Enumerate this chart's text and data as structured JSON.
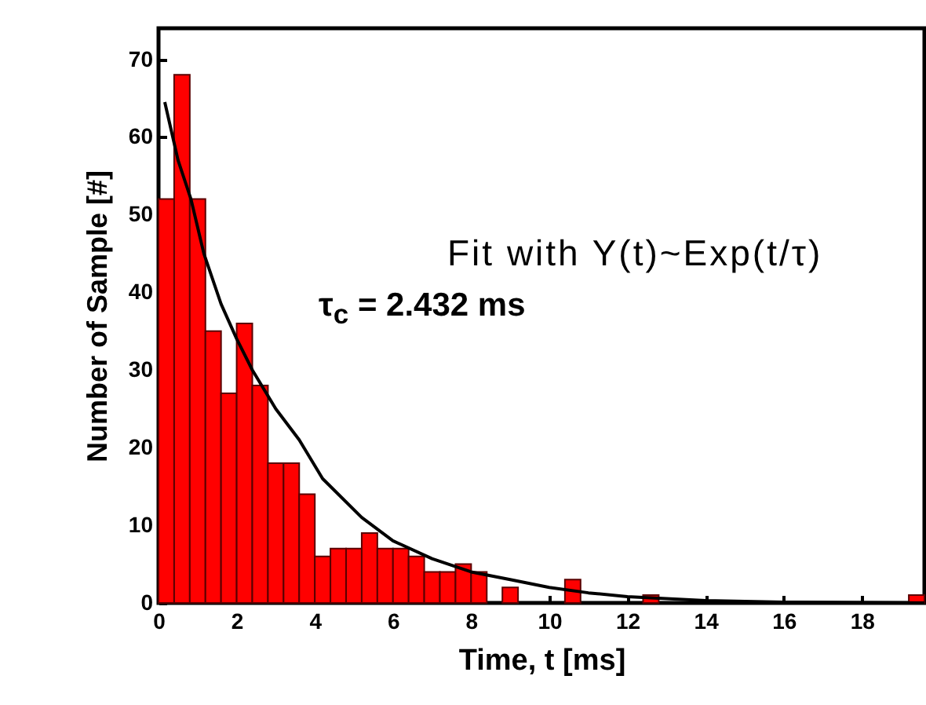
{
  "chart_data": {
    "type": "histogram",
    "xlabel": "Time, t [ms]",
    "ylabel": "Number of Sample [#]",
    "color": "#ff0000",
    "bins": [
      0,
      0.4,
      0.8,
      1.2,
      1.6,
      2,
      2.4,
      2.8,
      3.2,
      3.6,
      4,
      4.4,
      4.8,
      5.2,
      5.6,
      6,
      6.4,
      6.8,
      7.2,
      7.6,
      8,
      8.4,
      8.8,
      9.2,
      9.6,
      10,
      10.4,
      10.8,
      11.2,
      11.6,
      12,
      12.4,
      12.8,
      13.2,
      13.6,
      14,
      14.4,
      14.8,
      15.2,
      15.6,
      16,
      16.4,
      16.8,
      17.2,
      17.6,
      18,
      18.4,
      18.8,
      19.2,
      19.6
    ],
    "values": [
      52,
      68,
      52,
      35,
      27,
      36,
      28,
      18,
      18,
      14,
      6,
      7,
      7,
      9,
      7,
      7,
      6,
      4,
      4,
      5,
      4,
      0,
      2,
      0,
      0,
      0,
      3,
      0,
      0,
      0,
      0,
      1,
      0,
      0,
      0,
      0,
      0,
      0,
      0,
      0,
      0,
      0,
      0,
      0,
      0,
      0,
      0,
      0,
      1
    ],
    "series": [
      {
        "type": "line",
        "color": "#000000",
        "x": [
          0.16,
          0.5,
          0.83,
          1.16,
          1.6,
          2,
          2.4,
          3,
          3.6,
          4.2,
          5.2,
          6,
          7,
          8,
          9,
          10,
          11,
          12,
          14,
          16,
          19.6
        ],
        "values": [
          64.5,
          57,
          52,
          45,
          38.5,
          34,
          30,
          25,
          21,
          16,
          11,
          8,
          5.7,
          4,
          3,
          2,
          1.3,
          0.8,
          0.3,
          0.1,
          0
        ]
      }
    ],
    "xlim": [
      0,
      19.6
    ],
    "ylim": [
      0,
      74
    ],
    "xticks": [
      0,
      2,
      4,
      6,
      8,
      10,
      12,
      14,
      16,
      18
    ],
    "yticks": [
      0,
      10,
      20,
      30,
      40,
      50,
      60,
      70
    ],
    "annotations": [
      "Fit with Y(t)~Exp(t/τ)",
      "τ$_{c}$ = 2.432 ms"
    ]
  }
}
